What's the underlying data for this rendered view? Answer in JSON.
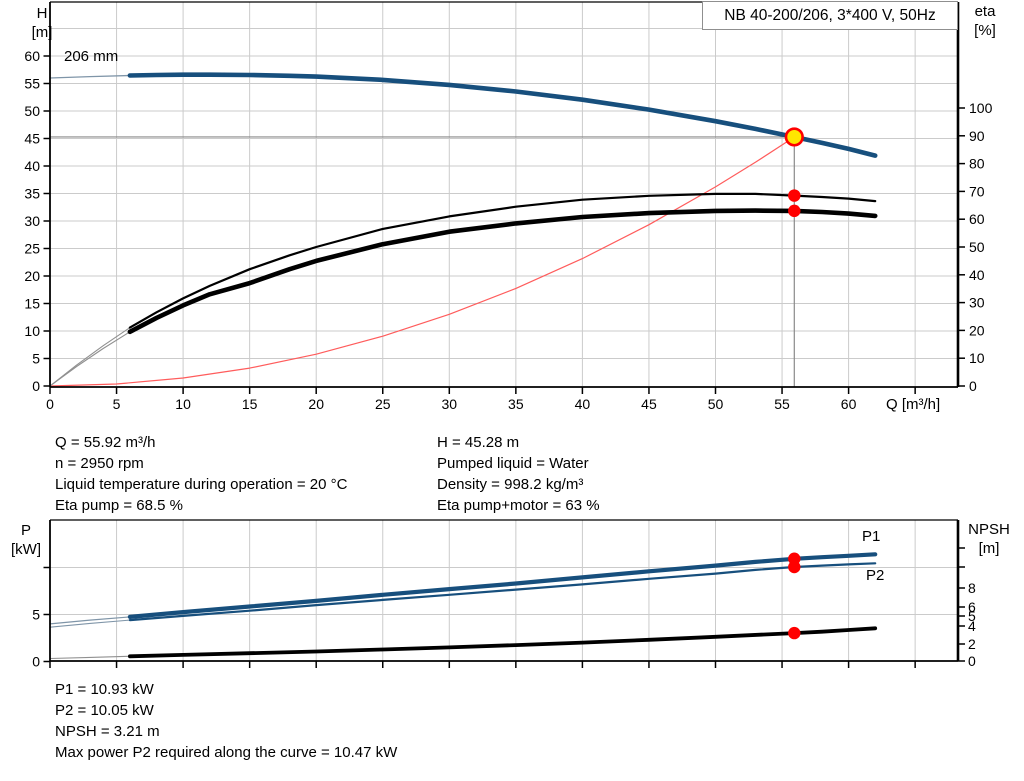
{
  "colors": {
    "curve_blue": "#174F7D",
    "curve_black": "#000000",
    "system_red": "#ff5c5c",
    "marker_red": "#ff0000",
    "duty_yellow": "#ffe600",
    "grid_gray": "#cbcbcb",
    "crosshair_gray": "#8a8a8a",
    "lead_in_blue": "#7f95a8",
    "lead_in_gray": "#909090"
  },
  "axis_titles": {
    "h": "H",
    "h_unit": "[m]",
    "eta": "eta",
    "eta_unit": "[%]",
    "q": "Q [m³/h]",
    "p": "P",
    "p_unit": "[kW]",
    "npsh": "NPSH",
    "npsh_unit": "[m]"
  },
  "info_top": {
    "left": [
      "Q = 55.92 m³/h",
      "n = 2950 rpm",
      "Liquid temperature during operation = 20 °C",
      "Eta pump = 68.5 %"
    ],
    "right": [
      "H = 45.28 m",
      "Pumped liquid = Water",
      "Density = 998.2 kg/m³",
      "Eta pump+motor = 63 %"
    ]
  },
  "info_bottom": [
    "P1 = 10.93 kW",
    "P2 = 10.05 kW",
    "NPSH = 3.21 m",
    "Max power P2 required along the curve = 10.47 kW"
  ],
  "chart_data": [
    {
      "type": "line",
      "title": "NB 40-200/206, 3*400 V, 50Hz",
      "xlabel": "Q [m³/h]",
      "ylabel_left": "H [m]",
      "ylabel_right": "eta [%]",
      "xlim": [
        0,
        68.2
      ],
      "ylim_left": [
        0,
        70
      ],
      "ylim_right": [
        0,
        138.5
      ],
      "grid": true,
      "x_tick_labels": [
        0,
        5,
        10,
        15,
        20,
        25,
        30,
        35,
        40,
        45,
        50,
        55,
        60
      ],
      "y_left_tick_labels": [
        0,
        5,
        10,
        15,
        20,
        25,
        30,
        35,
        40,
        45,
        50,
        55,
        60
      ],
      "y_right_tick_labels": [
        0,
        10,
        20,
        30,
        40,
        50,
        60,
        70,
        80,
        90,
        100
      ],
      "series": [
        {
          "name": "head-206mm",
          "label": "206 mm",
          "axis": "left",
          "thick_from": 6,
          "points": [
            [
              0,
              56.0
            ],
            [
              3,
              56.25
            ],
            [
              6,
              56.45
            ],
            [
              8,
              56.55
            ],
            [
              10,
              56.6
            ],
            [
              12,
              56.6
            ],
            [
              15,
              56.55
            ],
            [
              18,
              56.4
            ],
            [
              20,
              56.25
            ],
            [
              25,
              55.65
            ],
            [
              30,
              54.75
            ],
            [
              35,
              53.55
            ],
            [
              40,
              52.05
            ],
            [
              45,
              50.25
            ],
            [
              50,
              48.15
            ],
            [
              53,
              46.75
            ],
            [
              55.92,
              45.28
            ],
            [
              58,
              44.2
            ],
            [
              60,
              43.1
            ],
            [
              62,
              41.9
            ]
          ]
        },
        {
          "name": "eta-pump",
          "axis": "right",
          "thick_from": 6,
          "points": [
            [
              0,
              0
            ],
            [
              2,
              7.5
            ],
            [
              4,
              14.5
            ],
            [
              6,
              21
            ],
            [
              8,
              26.5
            ],
            [
              10,
              31.5
            ],
            [
              12,
              36
            ],
            [
              15,
              42
            ],
            [
              18,
              47
            ],
            [
              20,
              50
            ],
            [
              25,
              56.5
            ],
            [
              30,
              61
            ],
            [
              35,
              64.5
            ],
            [
              40,
              67
            ],
            [
              45,
              68.4
            ],
            [
              50,
              69.1
            ],
            [
              53,
              69.1
            ],
            [
              55.92,
              68.5
            ],
            [
              58,
              68
            ],
            [
              60,
              67.4
            ],
            [
              62,
              66.5
            ]
          ]
        },
        {
          "name": "eta-pump-motor",
          "axis": "right",
          "thick_from": 6,
          "points": [
            [
              0,
              0
            ],
            [
              2,
              7
            ],
            [
              4,
              13.5
            ],
            [
              6,
              19.5
            ],
            [
              8,
              24.5
            ],
            [
              10,
              29
            ],
            [
              12,
              33
            ],
            [
              15,
              37
            ],
            [
              18,
              42
            ],
            [
              20,
              45
            ],
            [
              25,
              51
            ],
            [
              30,
              55.5
            ],
            [
              35,
              58.5
            ],
            [
              40,
              60.8
            ],
            [
              45,
              62.2
            ],
            [
              50,
              63
            ],
            [
              53,
              63.1
            ],
            [
              55.92,
              63
            ],
            [
              58,
              62.6
            ],
            [
              60,
              62
            ],
            [
              62,
              61.2
            ]
          ]
        },
        {
          "name": "system-curve",
          "axis": "left",
          "points": [
            [
              0,
              0
            ],
            [
              5,
              0.36
            ],
            [
              10,
              1.45
            ],
            [
              15,
              3.26
            ],
            [
              20,
              5.79
            ],
            [
              25,
              9.05
            ],
            [
              30,
              13.03
            ],
            [
              35,
              17.74
            ],
            [
              40,
              23.17
            ],
            [
              45,
              29.32
            ],
            [
              50,
              36.2
            ],
            [
              53,
              40.67
            ],
            [
              55.92,
              45.28
            ]
          ]
        }
      ],
      "markers": {
        "duty_point": {
          "q": 55.92,
          "h": 45.28
        },
        "eta_points": [
          {
            "q": 55.92,
            "eta": 68.5
          },
          {
            "q": 55.92,
            "eta": 63
          }
        ]
      }
    },
    {
      "type": "line",
      "ylabel_left": "P [kW]",
      "ylabel_right": "NPSH [m]",
      "xlim": [
        0,
        68.2
      ],
      "ylim_left": [
        0,
        15
      ],
      "grid": true,
      "y_left_tick_labels": [
        0,
        5
      ],
      "y_right_tick_labels": [
        0,
        2,
        4,
        5,
        6,
        8
      ],
      "series": [
        {
          "name": "P1",
          "label": "P1",
          "axis": "left",
          "thick_from": 6,
          "points": [
            [
              0,
              4.0
            ],
            [
              3,
              4.4
            ],
            [
              6,
              4.75
            ],
            [
              10,
              5.25
            ],
            [
              15,
              5.85
            ],
            [
              20,
              6.45
            ],
            [
              25,
              7.1
            ],
            [
              30,
              7.7
            ],
            [
              35,
              8.3
            ],
            [
              40,
              8.95
            ],
            [
              45,
              9.6
            ],
            [
              50,
              10.2
            ],
            [
              53,
              10.6
            ],
            [
              55.92,
              10.93
            ],
            [
              58,
              11.1
            ],
            [
              60,
              11.25
            ],
            [
              62,
              11.4
            ]
          ]
        },
        {
          "name": "P2",
          "label": "P2",
          "axis": "left",
          "thick_from": 6,
          "points": [
            [
              0,
              3.65
            ],
            [
              3,
              4.05
            ],
            [
              6,
              4.4
            ],
            [
              10,
              4.85
            ],
            [
              15,
              5.4
            ],
            [
              20,
              6.0
            ],
            [
              25,
              6.55
            ],
            [
              30,
              7.1
            ],
            [
              35,
              7.65
            ],
            [
              40,
              8.2
            ],
            [
              45,
              8.8
            ],
            [
              50,
              9.35
            ],
            [
              53,
              9.75
            ],
            [
              55.92,
              10.05
            ],
            [
              58,
              10.2
            ],
            [
              60,
              10.33
            ],
            [
              62,
              10.45
            ]
          ]
        },
        {
          "name": "NPSH",
          "axis": "right",
          "thick_from": 6,
          "points": [
            [
              0,
              0.3
            ],
            [
              3,
              0.42
            ],
            [
              6,
              0.55
            ],
            [
              10,
              0.72
            ],
            [
              15,
              0.92
            ],
            [
              20,
              1.12
            ],
            [
              25,
              1.35
            ],
            [
              30,
              1.6
            ],
            [
              35,
              1.87
            ],
            [
              40,
              2.15
            ],
            [
              45,
              2.47
            ],
            [
              50,
              2.8
            ],
            [
              55.92,
              3.21
            ],
            [
              58,
              3.37
            ],
            [
              60,
              3.55
            ],
            [
              62,
              3.75
            ]
          ]
        }
      ],
      "markers": {
        "duty_values": [
          {
            "q": 55.92,
            "value": 10.93,
            "axis": "left"
          },
          {
            "q": 55.92,
            "value": 10.05,
            "axis": "left"
          },
          {
            "q": 55.92,
            "value": 3.21,
            "axis": "right"
          }
        ]
      }
    }
  ]
}
